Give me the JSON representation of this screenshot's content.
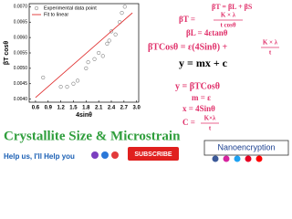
{
  "chart_data": {
    "type": "scatter",
    "x_label": "4sinθ",
    "y_label": "βT cosθ",
    "series": [
      {
        "name": "Experimental data point",
        "color": "#888888",
        "marker": "circle",
        "x": [
          0.78,
          1.2,
          1.35,
          1.5,
          1.6,
          1.8,
          1.85,
          2.0,
          2.1,
          2.2,
          2.3,
          2.35,
          2.4,
          2.5,
          2.6,
          2.65,
          2.72
        ],
        "values": [
          0.0047,
          0.0044,
          0.0044,
          0.0045,
          0.0046,
          0.005,
          0.0052,
          0.0053,
          0.0055,
          0.0054,
          0.0058,
          0.0059,
          0.0062,
          0.0061,
          0.0065,
          0.0068,
          0.007
        ]
      },
      {
        "name": "Fit to linear",
        "color": "#e03030",
        "marker": "line",
        "x": [
          0.6,
          2.9
        ],
        "values": [
          0.00405,
          0.0068
        ]
      }
    ],
    "xlim": [
      0.45,
      3.05
    ],
    "xticks": [
      0.6,
      0.9,
      1.2,
      1.5,
      1.8,
      2.1,
      2.4,
      2.7,
      {
        "value": 3,
        "label": "3.0"
      }
    ],
    "ylim": [
      0.0039,
      0.0071
    ],
    "yticks": [
      {
        "value": 0.004,
        "label": "0.0040"
      },
      {
        "value": 0.0045,
        "label": "0.0045"
      },
      {
        "value": 0.005,
        "label": "0.0050"
      },
      {
        "value": 0.0055,
        "label": "0.0055"
      },
      {
        "value": 0.006,
        "label": "0.0060"
      },
      {
        "value": 0.0065,
        "label": "0.0065"
      },
      {
        "value": 0.007,
        "label": "0.0070"
      }
    ],
    "legend": "upper left"
  },
  "formulas": {
    "line1": "βT = βL + βS",
    "line2": {
      "lhs": "βT =",
      "num": "K × λ",
      "den": "t cosθ"
    },
    "line3": "βL = 4εtanθ",
    "line4": {
      "lhs": "βTCosθ = ε(4Sinθ) +",
      "num": "K × λ",
      "den": "t"
    },
    "line5": "y = mx + c",
    "line6": "y = βTCosθ",
    "line7": "m = ε",
    "line8": "x = 4Sinθ",
    "line9": {
      "lhs": "C =",
      "num": "K×λ",
      "den": "t"
    }
  },
  "footer": {
    "title": "Crystallite Size & Microstrain",
    "help": "Help us, I'll Help you",
    "subscribe": "SUBSCRIBE",
    "channel": "Nanoencryption"
  }
}
